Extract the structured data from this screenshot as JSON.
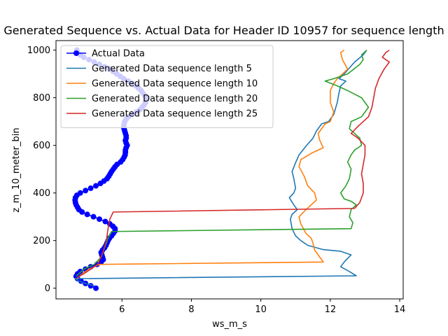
{
  "chart_data": {
    "type": "line",
    "title": "Generated Sequence vs. Actual Data for Header ID 10957 for sequence length",
    "xlabel": "ws_m_s",
    "ylabel": "z_m_10_meter_bin",
    "xlim": [
      4.1,
      14.1
    ],
    "ylim": [
      -45,
      1040
    ],
    "x_ticks": [
      6,
      8,
      10,
      12,
      14
    ],
    "y_ticks": [
      0,
      200,
      400,
      600,
      800,
      1000
    ],
    "grid": false,
    "legend_position": "top-left",
    "series": [
      {
        "name": "Actual Data",
        "color": "#0000ff",
        "marker": "o",
        "points": [
          [
            5.25,
            0
          ],
          [
            5.1,
            10
          ],
          [
            4.95,
            20
          ],
          [
            4.82,
            30
          ],
          [
            4.72,
            40
          ],
          [
            4.68,
            50
          ],
          [
            4.72,
            60
          ],
          [
            4.8,
            70
          ],
          [
            4.95,
            80
          ],
          [
            5.1,
            90
          ],
          [
            5.28,
            100
          ],
          [
            5.4,
            110
          ],
          [
            5.46,
            120
          ],
          [
            5.44,
            130
          ],
          [
            5.42,
            140
          ],
          [
            5.4,
            150
          ],
          [
            5.44,
            160
          ],
          [
            5.5,
            170
          ],
          [
            5.54,
            180
          ],
          [
            5.57,
            190
          ],
          [
            5.6,
            200
          ],
          [
            5.64,
            210
          ],
          [
            5.7,
            220
          ],
          [
            5.75,
            230
          ],
          [
            5.8,
            240
          ],
          [
            5.8,
            250
          ],
          [
            5.74,
            260
          ],
          [
            5.65,
            270
          ],
          [
            5.52,
            280
          ],
          [
            5.35,
            290
          ],
          [
            5.18,
            300
          ],
          [
            5.0,
            310
          ],
          [
            4.85,
            320
          ],
          [
            4.76,
            330
          ],
          [
            4.72,
            340
          ],
          [
            4.68,
            350
          ],
          [
            4.66,
            360
          ],
          [
            4.65,
            370
          ],
          [
            4.66,
            380
          ],
          [
            4.7,
            390
          ],
          [
            4.8,
            400
          ],
          [
            4.95,
            410
          ],
          [
            5.1,
            420
          ],
          [
            5.25,
            430
          ],
          [
            5.38,
            440
          ],
          [
            5.48,
            450
          ],
          [
            5.57,
            460
          ],
          [
            5.62,
            470
          ],
          [
            5.66,
            480
          ],
          [
            5.7,
            490
          ],
          [
            5.75,
            500
          ],
          [
            5.8,
            510
          ],
          [
            5.86,
            520
          ],
          [
            5.96,
            530
          ],
          [
            6.02,
            540
          ],
          [
            6.06,
            550
          ],
          [
            6.09,
            560
          ],
          [
            6.1,
            570
          ],
          [
            6.1,
            580
          ],
          [
            6.12,
            590
          ],
          [
            6.15,
            600
          ],
          [
            6.12,
            610
          ],
          [
            6.1,
            620
          ],
          [
            6.12,
            630
          ],
          [
            6.12,
            640
          ],
          [
            6.1,
            650
          ],
          [
            6.08,
            660
          ],
          [
            6.06,
            670
          ],
          [
            6.05,
            680
          ],
          [
            6.06,
            690
          ],
          [
            6.08,
            700
          ],
          [
            6.12,
            710
          ],
          [
            6.18,
            720
          ],
          [
            6.3,
            730
          ],
          [
            6.42,
            740
          ],
          [
            6.52,
            750
          ],
          [
            6.58,
            760
          ],
          [
            6.64,
            770
          ],
          [
            6.68,
            780
          ],
          [
            6.7,
            790
          ],
          [
            6.7,
            800
          ],
          [
            6.65,
            810
          ],
          [
            6.6,
            820
          ],
          [
            6.55,
            830
          ],
          [
            6.48,
            840
          ],
          [
            6.4,
            850
          ],
          [
            6.3,
            860
          ],
          [
            6.18,
            870
          ],
          [
            6.05,
            880
          ],
          [
            5.95,
            890
          ],
          [
            5.85,
            900
          ],
          [
            5.75,
            910
          ],
          [
            5.64,
            920
          ],
          [
            5.5,
            930
          ],
          [
            5.35,
            940
          ],
          [
            5.2,
            950
          ],
          [
            5.05,
            960
          ],
          [
            4.9,
            970
          ],
          [
            4.8,
            980
          ],
          [
            4.72,
            990
          ],
          [
            4.7,
            1000
          ]
        ]
      },
      {
        "name": "Generated Data sequence length 5",
        "color": "#1f77b4",
        "points": [
          [
            5.2,
            10
          ],
          [
            4.95,
            20
          ],
          [
            4.75,
            30
          ],
          [
            4.65,
            40
          ],
          [
            12.75,
            52
          ],
          [
            12.55,
            70
          ],
          [
            12.3,
            90
          ],
          [
            12.4,
            110
          ],
          [
            12.6,
            140
          ],
          [
            12.3,
            155
          ],
          [
            11.8,
            162
          ],
          [
            11.35,
            180
          ],
          [
            11.15,
            200
          ],
          [
            11.0,
            220
          ],
          [
            10.9,
            250
          ],
          [
            10.85,
            290
          ],
          [
            10.9,
            310
          ],
          [
            11.05,
            330
          ],
          [
            10.95,
            350
          ],
          [
            10.82,
            380
          ],
          [
            10.95,
            400
          ],
          [
            11.0,
            420
          ],
          [
            10.95,
            460
          ],
          [
            10.9,
            490
          ],
          [
            10.98,
            520
          ],
          [
            11.1,
            560
          ],
          [
            11.32,
            600
          ],
          [
            11.5,
            630
          ],
          [
            11.6,
            660
          ],
          [
            11.75,
            690
          ],
          [
            11.95,
            700
          ],
          [
            12.1,
            730
          ],
          [
            12.2,
            780
          ],
          [
            12.25,
            820
          ],
          [
            12.3,
            850
          ],
          [
            12.45,
            870
          ],
          [
            12.25,
            880
          ],
          [
            12.4,
            900
          ],
          [
            12.7,
            950
          ],
          [
            12.95,
            980
          ],
          [
            13.05,
            1000
          ]
        ]
      },
      {
        "name": "Generated Data sequence length 10",
        "color": "#ff7f0e",
        "points": [
          [
            4.7,
            40
          ],
          [
            4.85,
            60
          ],
          [
            5.05,
            80
          ],
          [
            5.35,
            100
          ],
          [
            11.8,
            110
          ],
          [
            11.7,
            130
          ],
          [
            11.55,
            160
          ],
          [
            11.5,
            190
          ],
          [
            11.45,
            210
          ],
          [
            11.3,
            230
          ],
          [
            11.15,
            270
          ],
          [
            11.1,
            300
          ],
          [
            11.3,
            330
          ],
          [
            11.6,
            370
          ],
          [
            11.55,
            400
          ],
          [
            11.35,
            430
          ],
          [
            11.25,
            470
          ],
          [
            11.1,
            510
          ],
          [
            11.15,
            540
          ],
          [
            11.5,
            570
          ],
          [
            11.8,
            590
          ],
          [
            11.7,
            620
          ],
          [
            11.65,
            650
          ],
          [
            11.85,
            690
          ],
          [
            12.0,
            700
          ],
          [
            12.1,
            740
          ],
          [
            12.0,
            780
          ],
          [
            12.0,
            830
          ],
          [
            12.1,
            860
          ],
          [
            12.2,
            880
          ],
          [
            12.5,
            920
          ],
          [
            12.35,
            960
          ],
          [
            12.3,
            990
          ],
          [
            12.4,
            1000
          ]
        ]
      },
      {
        "name": "Generated Data sequence length 20",
        "color": "#2ca02c",
        "points": [
          [
            4.68,
            50
          ],
          [
            4.9,
            80
          ],
          [
            5.2,
            100
          ],
          [
            5.4,
            130
          ],
          [
            5.5,
            170
          ],
          [
            5.6,
            210
          ],
          [
            5.7,
            238
          ],
          [
            12.6,
            250
          ],
          [
            12.65,
            275
          ],
          [
            12.55,
            300
          ],
          [
            12.6,
            330
          ],
          [
            12.75,
            350
          ],
          [
            12.6,
            365
          ],
          [
            12.4,
            375
          ],
          [
            12.3,
            400
          ],
          [
            12.45,
            430
          ],
          [
            12.55,
            460
          ],
          [
            12.6,
            500
          ],
          [
            12.5,
            530
          ],
          [
            12.6,
            560
          ],
          [
            12.7,
            580
          ],
          [
            12.9,
            600
          ],
          [
            12.85,
            630
          ],
          [
            12.7,
            650
          ],
          [
            12.55,
            670
          ],
          [
            12.6,
            700
          ],
          [
            12.9,
            720
          ],
          [
            13.1,
            760
          ],
          [
            12.9,
            800
          ],
          [
            12.5,
            830
          ],
          [
            12.2,
            850
          ],
          [
            11.85,
            870
          ],
          [
            12.1,
            880
          ],
          [
            12.5,
            900
          ],
          [
            12.85,
            940
          ],
          [
            12.95,
            960
          ],
          [
            12.9,
            980
          ],
          [
            13.05,
            1000
          ]
        ]
      },
      {
        "name": "Generated Data sequence length 25",
        "color": "#d62728",
        "points": [
          [
            4.72,
            45
          ],
          [
            5.0,
            70
          ],
          [
            5.3,
            100
          ],
          [
            5.45,
            150
          ],
          [
            5.55,
            200
          ],
          [
            5.6,
            250
          ],
          [
            5.65,
            290
          ],
          [
            5.75,
            320
          ],
          [
            12.7,
            335
          ],
          [
            12.85,
            360
          ],
          [
            12.95,
            400
          ],
          [
            12.95,
            440
          ],
          [
            12.9,
            480
          ],
          [
            12.95,
            520
          ],
          [
            13.0,
            560
          ],
          [
            13.0,
            600
          ],
          [
            12.8,
            630
          ],
          [
            12.6,
            650
          ],
          [
            12.8,
            680
          ],
          [
            13.1,
            720
          ],
          [
            13.2,
            760
          ],
          [
            13.25,
            800
          ],
          [
            13.3,
            840
          ],
          [
            13.4,
            880
          ],
          [
            13.55,
            920
          ],
          [
            13.7,
            950
          ],
          [
            13.5,
            970
          ],
          [
            13.6,
            990
          ],
          [
            13.7,
            1000
          ]
        ]
      }
    ]
  }
}
